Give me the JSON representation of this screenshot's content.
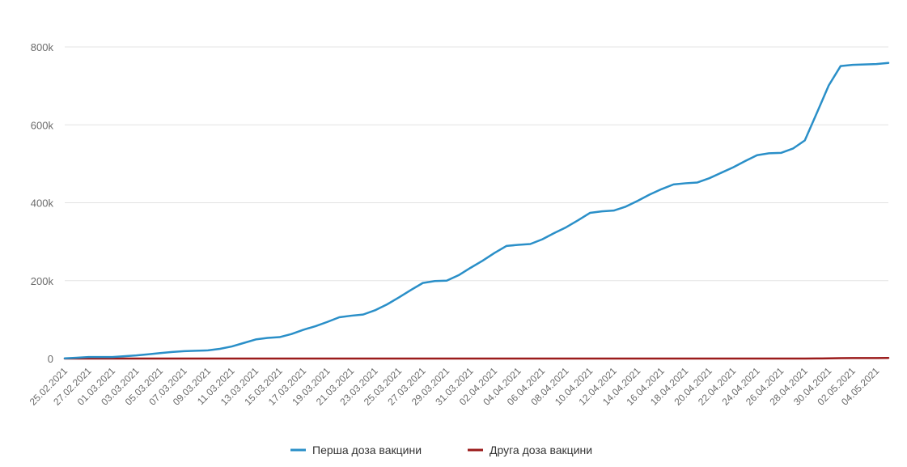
{
  "chart_data": {
    "type": "line",
    "title": "",
    "xlabel": "",
    "ylabel": "",
    "ylim": [
      0,
      800000
    ],
    "y_ticks": [
      {
        "value": 0,
        "label": "0"
      },
      {
        "value": 200000,
        "label": "200k"
      },
      {
        "value": 400000,
        "label": "400k"
      },
      {
        "value": 600000,
        "label": "600k"
      },
      {
        "value": 800000,
        "label": "800k"
      }
    ],
    "grid": true,
    "legend_position": "bottom-center",
    "x": [
      "25.02.2021",
      "26.02.2021",
      "27.02.2021",
      "28.02.2021",
      "01.03.2021",
      "02.03.2021",
      "03.03.2021",
      "04.03.2021",
      "05.03.2021",
      "06.03.2021",
      "07.03.2021",
      "08.03.2021",
      "09.03.2021",
      "10.03.2021",
      "11.03.2021",
      "12.03.2021",
      "13.03.2021",
      "14.03.2021",
      "15.03.2021",
      "16.03.2021",
      "17.03.2021",
      "18.03.2021",
      "19.03.2021",
      "20.03.2021",
      "21.03.2021",
      "22.03.2021",
      "23.03.2021",
      "24.03.2021",
      "25.03.2021",
      "26.03.2021",
      "27.03.2021",
      "28.03.2021",
      "29.03.2021",
      "30.03.2021",
      "31.03.2021",
      "01.04.2021",
      "02.04.2021",
      "03.04.2021",
      "04.04.2021",
      "05.04.2021",
      "06.04.2021",
      "07.04.2021",
      "08.04.2021",
      "09.04.2021",
      "10.04.2021",
      "11.04.2021",
      "12.04.2021",
      "13.04.2021",
      "14.04.2021",
      "15.04.2021",
      "16.04.2021",
      "17.04.2021",
      "18.04.2021",
      "19.04.2021",
      "20.04.2021",
      "21.04.2021",
      "22.04.2021",
      "23.04.2021",
      "24.04.2021",
      "25.04.2021",
      "26.04.2021",
      "27.04.2021",
      "28.04.2021",
      "29.04.2021",
      "30.04.2021",
      "01.05.2021",
      "02.05.2021",
      "03.05.2021",
      "04.05.2021",
      "05.05.2021"
    ],
    "x_tick_labels": [
      "25.02.2021",
      "27.02.2021",
      "01.03.2021",
      "03.03.2021",
      "05.03.2021",
      "07.03.2021",
      "09.03.2021",
      "11.03.2021",
      "13.03.2021",
      "15.03.2021",
      "17.03.2021",
      "19.03.2021",
      "21.03.2021",
      "23.03.2021",
      "25.03.2021",
      "27.03.2021",
      "29.03.2021",
      "31.03.2021",
      "02.04.2021",
      "04.04.2021",
      "06.04.2021",
      "08.04.2021",
      "10.04.2021",
      "12.04.2021",
      "14.04.2021",
      "16.04.2021",
      "18.04.2021",
      "20.04.2021",
      "22.04.2021",
      "24.04.2021",
      "26.04.2021",
      "28.04.2021",
      "30.04.2021",
      "02.05.2021",
      "04.05.2021"
    ],
    "series": [
      {
        "name": "Перша доза вакцини",
        "color": "#2a8fc8",
        "values": [
          500,
          2000,
          4000,
          4000,
          4000,
          6000,
          8000,
          11000,
          14000,
          17000,
          19000,
          20000,
          21000,
          25000,
          31000,
          40000,
          49000,
          53000,
          55000,
          63000,
          74000,
          83000,
          94000,
          106000,
          110000,
          113000,
          124000,
          139000,
          157000,
          176000,
          194000,
          199000,
          200000,
          214000,
          233000,
          251000,
          271000,
          289000,
          292000,
          294000,
          306000,
          322000,
          337000,
          355000,
          374000,
          378000,
          380000,
          390000,
          405000,
          421000,
          435000,
          447000,
          450000,
          452000,
          463000,
          477000,
          491000,
          507000,
          522000,
          527000,
          528000,
          539000,
          560000,
          630000,
          701000,
          751000,
          754000,
          755000,
          756000,
          759000
        ]
      },
      {
        "name": "Друга доза вакцини",
        "color": "#9b1b1b",
        "values": [
          0,
          0,
          0,
          0,
          0,
          0,
          0,
          0,
          0,
          0,
          0,
          0,
          0,
          0,
          0,
          0,
          0,
          0,
          0,
          0,
          0,
          0,
          0,
          0,
          0,
          0,
          0,
          0,
          0,
          0,
          0,
          0,
          0,
          0,
          0,
          0,
          0,
          0,
          0,
          0,
          0,
          0,
          0,
          0,
          0,
          0,
          0,
          0,
          0,
          0,
          0,
          0,
          0,
          0,
          0,
          0,
          0,
          0,
          0,
          0,
          0,
          0,
          0,
          200,
          500,
          1000,
          1200,
          1300,
          1400,
          1500
        ]
      }
    ]
  }
}
